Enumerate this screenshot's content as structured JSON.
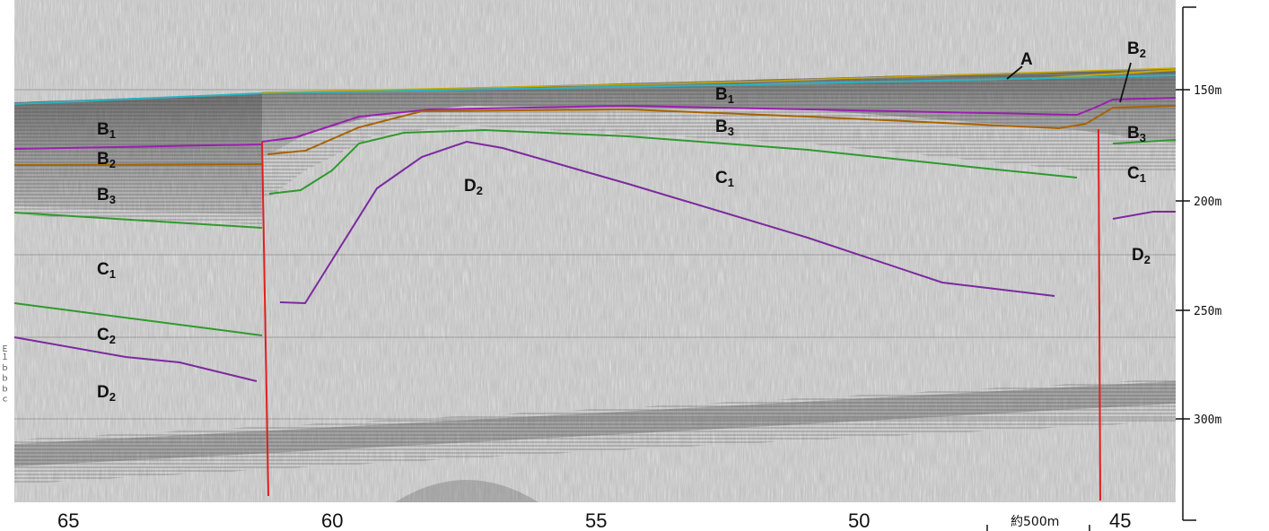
{
  "colors": {
    "A": "#c8a800",
    "seafloor": "#2bb3c0",
    "B1": "#9b1fb0",
    "B2": "#a86400",
    "B3": "#2e9a2e",
    "C2": "#2e9a2e",
    "D2": "#7b2a9e",
    "fault": "#e02020"
  },
  "unit_labels": {
    "A": "A",
    "B1": {
      "main": "B",
      "sub": "1"
    },
    "B2": {
      "main": "B",
      "sub": "2"
    },
    "B3": {
      "main": "B",
      "sub": "3"
    },
    "C1": {
      "main": "C",
      "sub": "1"
    },
    "C2": {
      "main": "C",
      "sub": "2"
    },
    "D2": {
      "main": "D",
      "sub": "2"
    }
  },
  "depth_axis": [
    "150m",
    "200m",
    "250m",
    "300m"
  ],
  "distance_axis": [
    "65",
    "60",
    "55",
    "50",
    "45"
  ],
  "scale_bar": "約500m",
  "left_margin_text": "Ｅ１ ｂ ｂ ｂ ｃ"
}
